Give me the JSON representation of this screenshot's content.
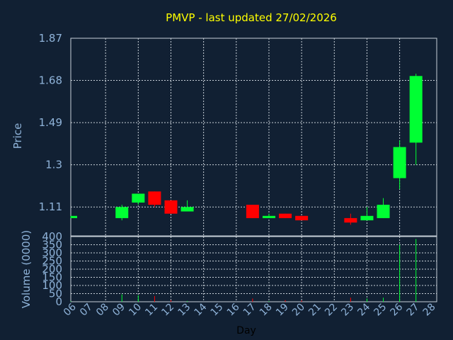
{
  "chart_data": {
    "type": "candlestick",
    "title": "PMVP - last updated 27/02/2026",
    "xlabel": "Day",
    "price_panel": {
      "ylabel": "Price",
      "ylim": [
        0.98,
        1.87
      ],
      "ticks": [
        "1.87",
        "1.68",
        "1.49",
        "1.3",
        "1.11"
      ],
      "tick_values": [
        1.87,
        1.68,
        1.49,
        1.3,
        1.11
      ]
    },
    "volume_panel": {
      "ylabel": "Volume (0000)",
      "ylim": [
        0,
        400
      ],
      "ticks": [
        "400",
        "350",
        "300",
        "250",
        "200",
        "150",
        "100",
        "50",
        "0"
      ],
      "tick_values": [
        400,
        350,
        300,
        250,
        200,
        150,
        100,
        50,
        0
      ]
    },
    "x_ticks": [
      "06",
      "07",
      "08",
      "09",
      "10",
      "11",
      "12",
      "13",
      "14",
      "15",
      "16",
      "17",
      "18",
      "19",
      "20",
      "21",
      "22",
      "23",
      "24",
      "25",
      "26",
      "27",
      "28"
    ],
    "candles": [
      {
        "day": "06",
        "open": 1.06,
        "close": 1.07,
        "high": 1.07,
        "low": 1.06,
        "volume": 3
      },
      {
        "day": "09",
        "open": 1.06,
        "close": 1.11,
        "high": 1.12,
        "low": 1.05,
        "volume": 45
      },
      {
        "day": "10",
        "open": 1.13,
        "close": 1.17,
        "high": 1.17,
        "low": 1.12,
        "volume": 40
      },
      {
        "day": "11",
        "open": 1.18,
        "close": 1.12,
        "high": 1.18,
        "low": 1.11,
        "volume": 35
      },
      {
        "day": "12",
        "open": 1.14,
        "close": 1.08,
        "high": 1.14,
        "low": 1.08,
        "volume": 10
      },
      {
        "day": "13",
        "open": 1.09,
        "close": 1.11,
        "high": 1.14,
        "low": 1.09,
        "volume": 5
      },
      {
        "day": "17",
        "open": 1.12,
        "close": 1.06,
        "high": 1.12,
        "low": 1.06,
        "volume": 20
      },
      {
        "day": "18",
        "open": 1.06,
        "close": 1.07,
        "high": 1.08,
        "low": 1.06,
        "volume": 4
      },
      {
        "day": "19",
        "open": 1.08,
        "close": 1.06,
        "high": 1.08,
        "low": 1.06,
        "volume": 10
      },
      {
        "day": "20",
        "open": 1.07,
        "close": 1.05,
        "high": 1.07,
        "low": 1.05,
        "volume": 8
      },
      {
        "day": "23",
        "open": 1.06,
        "close": 1.04,
        "high": 1.08,
        "low": 1.03,
        "volume": 25
      },
      {
        "day": "24",
        "open": 1.05,
        "close": 1.07,
        "high": 1.11,
        "low": 1.05,
        "volume": 20
      },
      {
        "day": "25",
        "open": 1.06,
        "close": 1.12,
        "high": 1.15,
        "low": 1.06,
        "volume": 25
      },
      {
        "day": "26",
        "open": 1.24,
        "close": 1.38,
        "high": 1.41,
        "low": 1.19,
        "volume": 350
      },
      {
        "day": "27",
        "open": 1.4,
        "close": 1.7,
        "high": 1.71,
        "low": 1.3,
        "volume": 385
      }
    ],
    "colors": {
      "background": "#112033",
      "plot_background": "#112033",
      "grid": "#c8d0d8",
      "axis_text": "#8fb3d9",
      "title": "#ffff00",
      "up": "#00ff33",
      "down": "#ff0000",
      "up_wick": "#00ff33",
      "down_wick": "#ff0000"
    }
  }
}
